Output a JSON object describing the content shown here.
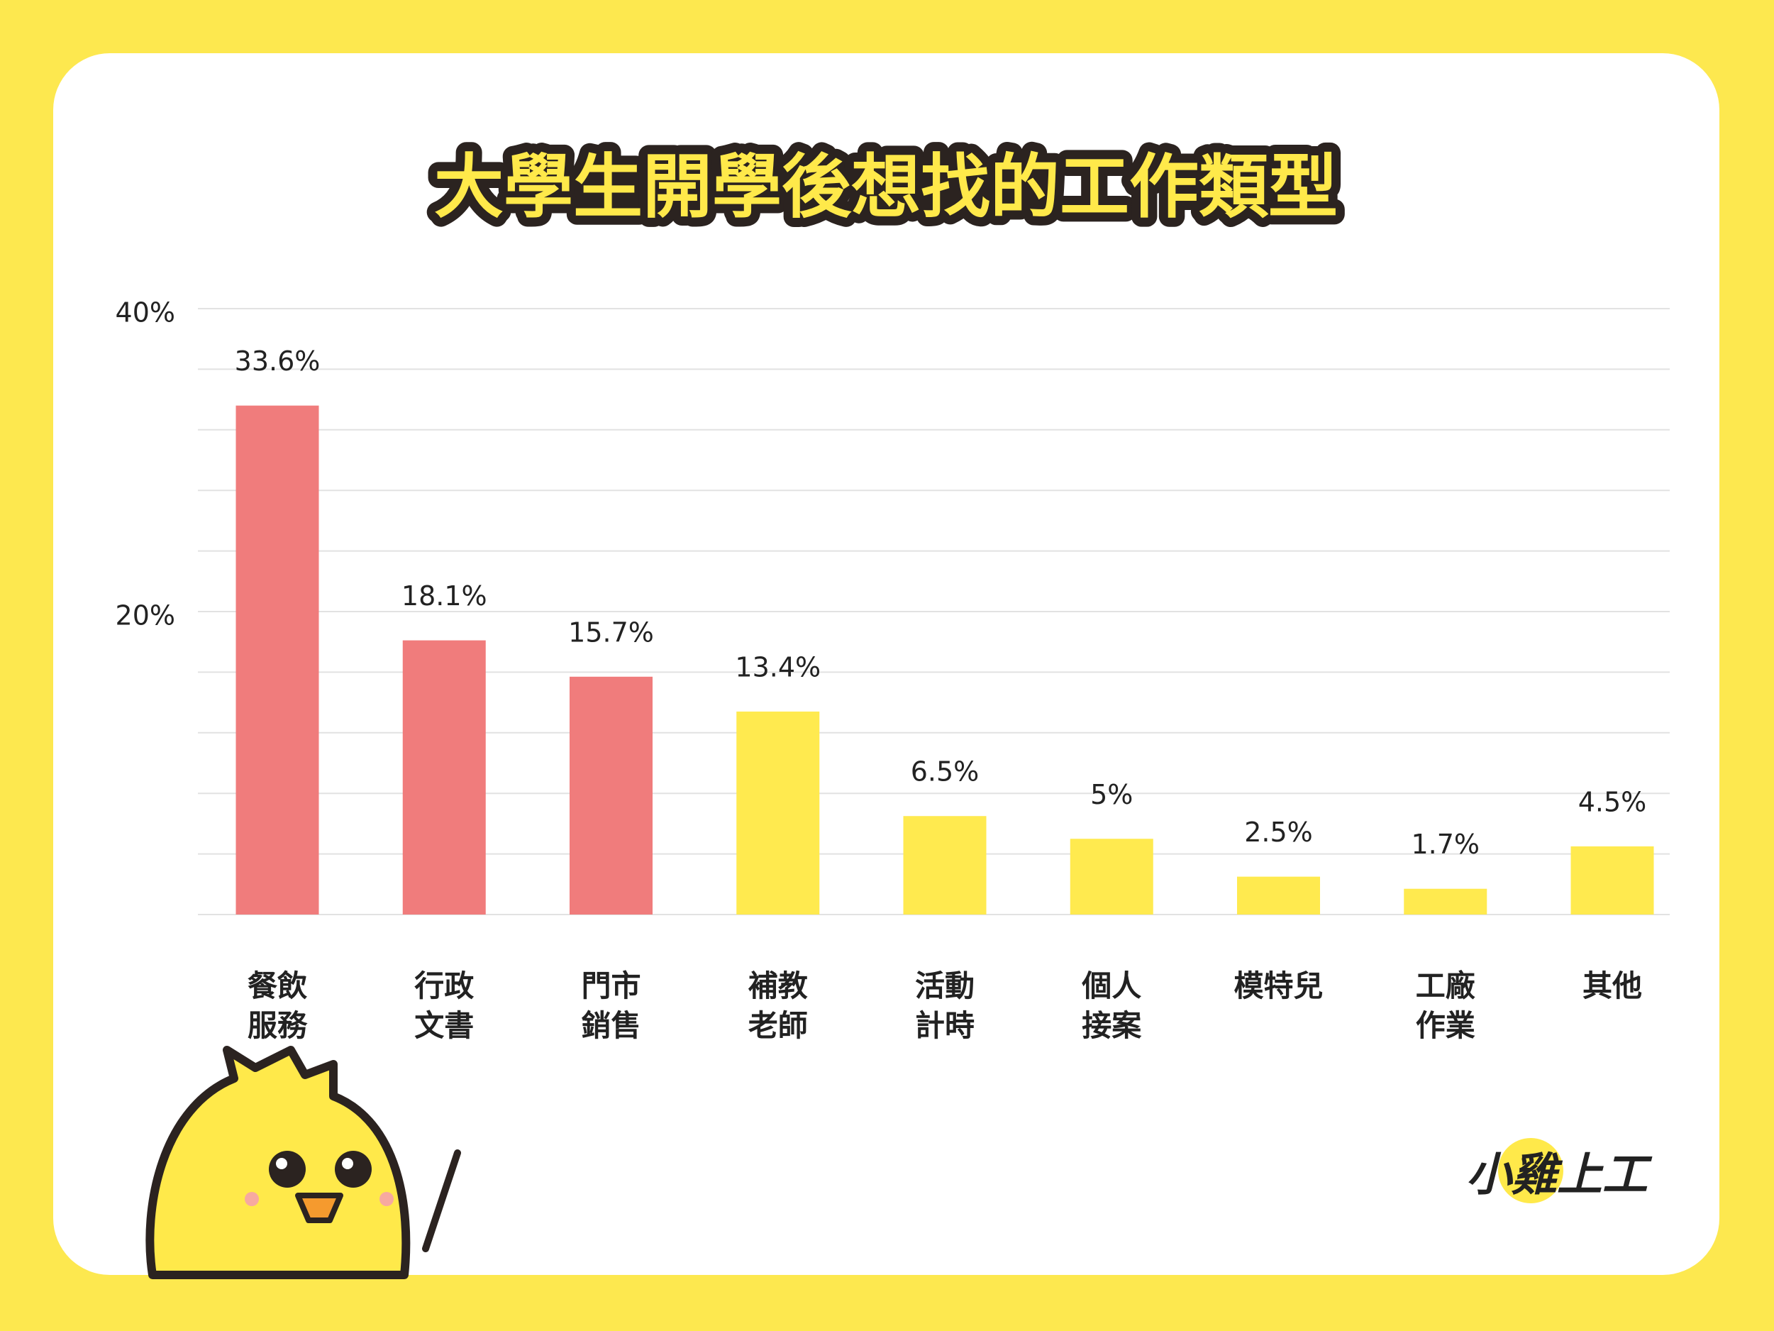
{
  "chart_data": {
    "type": "bar",
    "title": "大學生開學後想找的工作類型",
    "categories": [
      "餐飲\n服務",
      "行政\n文書",
      "門市\n銷售",
      "補教\n老師",
      "活動\n計時",
      "個人\n接案",
      "模特兒",
      "工廠\n作業",
      "其他"
    ],
    "values": [
      33.6,
      18.1,
      15.7,
      13.4,
      6.5,
      5,
      2.5,
      1.7,
      4.5
    ],
    "value_labels": [
      "33.6%",
      "18.1%",
      "15.7%",
      "13.4%",
      "6.5%",
      "5%",
      "2.5%",
      "1.7%",
      "4.5%"
    ],
    "colors": [
      "#f07c7c",
      "#f07c7c",
      "#f07c7c",
      "#ffea4f",
      "#ffea4f",
      "#ffea4f",
      "#ffea4f",
      "#ffea4f",
      "#ffea4f"
    ],
    "ylim": [
      0,
      40
    ],
    "yticks": [
      {
        "value": 0,
        "label": null
      },
      {
        "value": 4,
        "label": null
      },
      {
        "value": 8,
        "label": null
      },
      {
        "value": 12,
        "label": null
      },
      {
        "value": 16,
        "label": null
      },
      {
        "value": 20,
        "label": "20%"
      },
      {
        "value": 24,
        "label": null
      },
      {
        "value": 28,
        "label": null
      },
      {
        "value": 32,
        "label": null
      },
      {
        "value": 36,
        "label": null
      },
      {
        "value": 40,
        "label": "40%"
      }
    ],
    "grid": true
  },
  "brand": "小雞上工"
}
